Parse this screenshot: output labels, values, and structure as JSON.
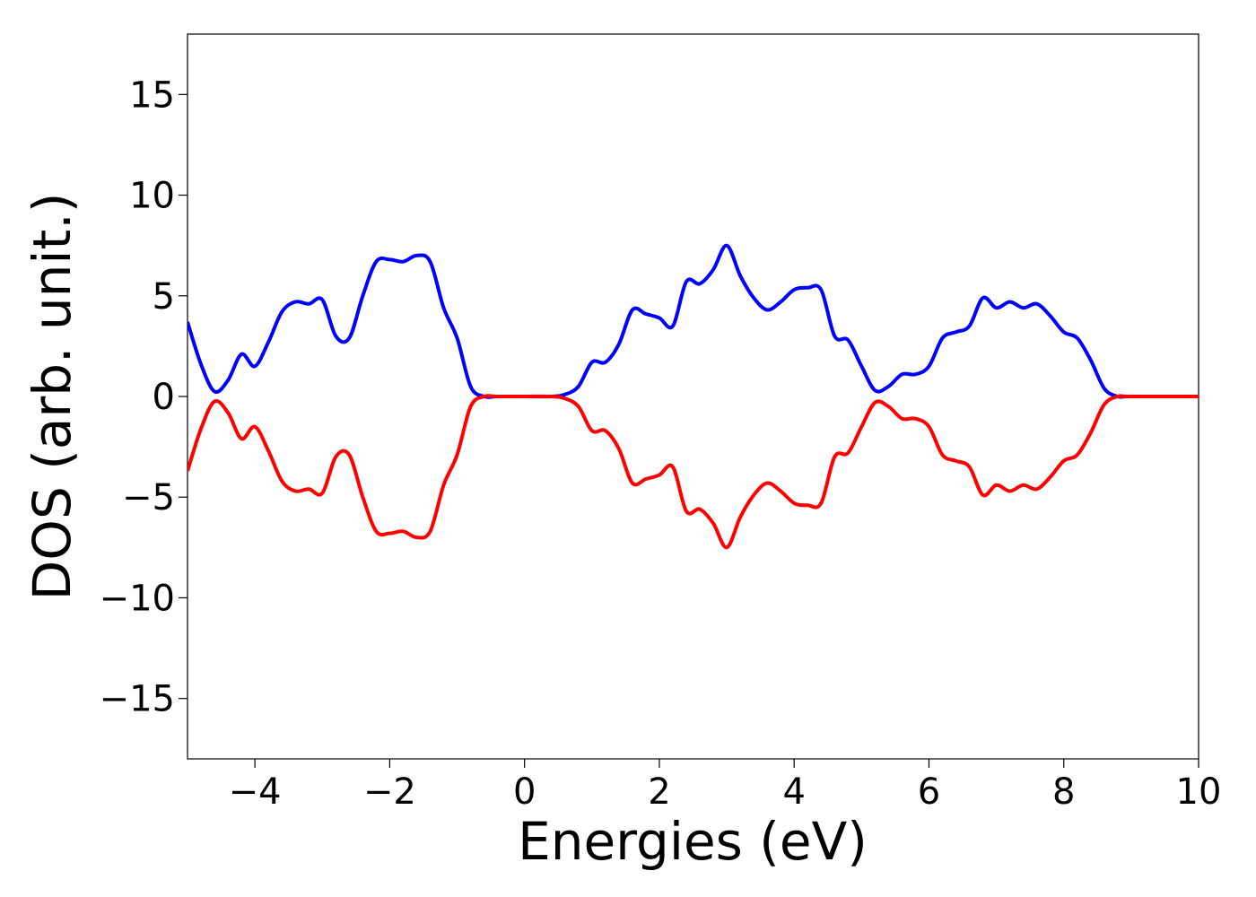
{
  "chart_data": {
    "type": "line",
    "title": "",
    "xlabel": "Energies (eV)",
    "ylabel": "DOS (arb. unit.)",
    "xlim": [
      -5,
      10
    ],
    "ylim": [
      -18,
      18
    ],
    "xticks": [
      -4,
      -2,
      0,
      2,
      4,
      6,
      8,
      10
    ],
    "yticks": [
      -15,
      -10,
      -5,
      0,
      5,
      10,
      15
    ],
    "xtick_labels": [
      "−4",
      "−2",
      "0",
      "2",
      "4",
      "6",
      "8",
      "10"
    ],
    "ytick_labels": [
      "−15",
      "−10",
      "−5",
      "0",
      "5",
      "10",
      "15"
    ],
    "grid": false,
    "legend": "none",
    "series": [
      {
        "color": "#0000ff",
        "x": [
          -5.0,
          -4.8,
          -4.6,
          -4.4,
          -4.2,
          -4.0,
          -3.8,
          -3.6,
          -3.4,
          -3.2,
          -3.0,
          -2.8,
          -2.6,
          -2.4,
          -2.2,
          -2.0,
          -1.8,
          -1.6,
          -1.4,
          -1.2,
          -1.0,
          -0.8,
          -0.6,
          -0.4,
          0.0,
          0.4,
          0.6,
          0.8,
          1.0,
          1.2,
          1.4,
          1.6,
          1.8,
          2.0,
          2.2,
          2.4,
          2.6,
          2.8,
          3.0,
          3.2,
          3.4,
          3.6,
          3.8,
          4.0,
          4.2,
          4.4,
          4.6,
          4.8,
          5.0,
          5.2,
          5.4,
          5.6,
          5.8,
          6.0,
          6.2,
          6.4,
          6.6,
          6.8,
          7.0,
          7.2,
          7.4,
          7.6,
          7.8,
          8.0,
          8.2,
          8.4,
          8.6,
          8.8,
          9.0,
          10.0
        ],
        "y": [
          3.7,
          1.6,
          0.25,
          0.8,
          2.1,
          1.5,
          2.7,
          4.2,
          4.7,
          4.6,
          4.8,
          3.0,
          2.9,
          5.0,
          6.7,
          6.8,
          6.7,
          7.0,
          6.7,
          4.4,
          2.9,
          0.5,
          0.0,
          0.0,
          0.0,
          0.0,
          0.1,
          0.5,
          1.7,
          1.7,
          2.6,
          4.3,
          4.1,
          3.9,
          3.5,
          5.7,
          5.6,
          6.3,
          7.5,
          6.0,
          4.9,
          4.3,
          4.7,
          5.3,
          5.4,
          5.3,
          3.0,
          2.8,
          1.5,
          0.3,
          0.5,
          1.1,
          1.1,
          1.5,
          2.9,
          3.2,
          3.5,
          4.9,
          4.4,
          4.7,
          4.4,
          4.6,
          4.0,
          3.2,
          2.9,
          1.8,
          0.4,
          0.0,
          0.0,
          0.0
        ]
      },
      {
        "color": "#ff0000",
        "x": [
          -5.0,
          -4.8,
          -4.6,
          -4.4,
          -4.2,
          -4.0,
          -3.8,
          -3.6,
          -3.4,
          -3.2,
          -3.0,
          -2.8,
          -2.6,
          -2.4,
          -2.2,
          -2.0,
          -1.8,
          -1.6,
          -1.4,
          -1.2,
          -1.0,
          -0.8,
          -0.6,
          -0.4,
          0.0,
          0.4,
          0.6,
          0.8,
          1.0,
          1.2,
          1.4,
          1.6,
          1.8,
          2.0,
          2.2,
          2.4,
          2.6,
          2.8,
          3.0,
          3.2,
          3.4,
          3.6,
          3.8,
          4.0,
          4.2,
          4.4,
          4.6,
          4.8,
          5.0,
          5.2,
          5.4,
          5.6,
          5.8,
          6.0,
          6.2,
          6.4,
          6.6,
          6.8,
          7.0,
          7.2,
          7.4,
          7.6,
          7.8,
          8.0,
          8.2,
          8.4,
          8.6,
          8.8,
          9.0,
          10.0
        ],
        "y": [
          -3.7,
          -1.6,
          -0.25,
          -0.8,
          -2.1,
          -1.5,
          -2.7,
          -4.2,
          -4.7,
          -4.6,
          -4.8,
          -3.0,
          -2.9,
          -5.0,
          -6.7,
          -6.8,
          -6.7,
          -7.0,
          -6.7,
          -4.4,
          -2.9,
          -0.5,
          0.0,
          0.0,
          0.0,
          0.0,
          -0.1,
          -0.5,
          -1.7,
          -1.7,
          -2.6,
          -4.3,
          -4.1,
          -3.9,
          -3.5,
          -5.7,
          -5.6,
          -6.3,
          -7.5,
          -6.0,
          -4.9,
          -4.3,
          -4.7,
          -5.3,
          -5.4,
          -5.3,
          -3.0,
          -2.8,
          -1.5,
          -0.3,
          -0.5,
          -1.1,
          -1.1,
          -1.5,
          -2.9,
          -3.2,
          -3.5,
          -4.9,
          -4.4,
          -4.7,
          -4.4,
          -4.6,
          -4.0,
          -3.2,
          -2.9,
          -1.8,
          -0.4,
          0.0,
          0.0,
          0.0
        ]
      }
    ]
  }
}
